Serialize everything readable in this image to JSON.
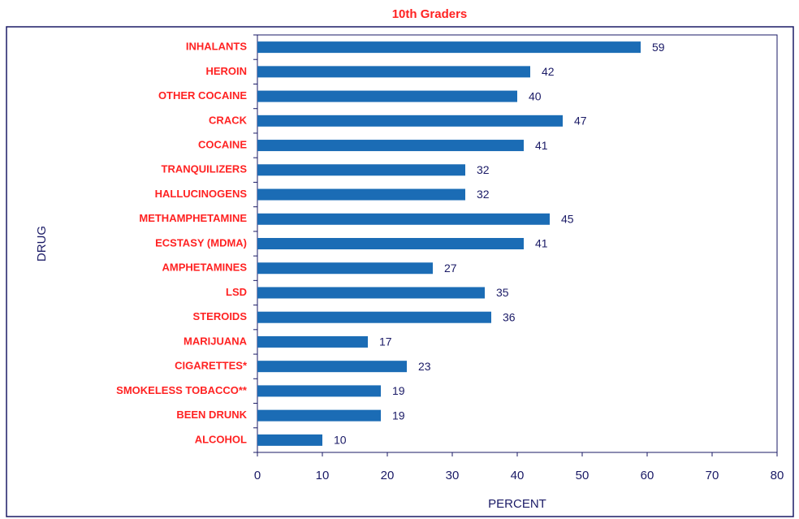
{
  "chart_data": {
    "type": "bar",
    "orientation": "horizontal",
    "title": "10th Graders",
    "xlabel": "PERCENT",
    "ylabel": "DRUG",
    "categories": [
      "INHALANTS",
      "HEROIN",
      "OTHER COCAINE",
      "CRACK",
      "COCAINE",
      "TRANQUILIZERS",
      "HALLUCINOGENS",
      "METHAMPHETAMINE",
      "ECSTASY (MDMA)",
      "AMPHETAMINES",
      "LSD",
      "STEROIDS",
      "MARIJUANA",
      "CIGARETTES*",
      "SMOKELESS TOBACCO**",
      "BEEN DRUNK",
      "ALCOHOL"
    ],
    "values": [
      59,
      42,
      40,
      47,
      41,
      32,
      32,
      45,
      41,
      27,
      35,
      36,
      17,
      23,
      19,
      19,
      10
    ],
    "color": "#1b6cb5",
    "xlim": [
      0,
      80
    ],
    "xticks": [
      0,
      10,
      20,
      30,
      40,
      50,
      60,
      70,
      80
    ],
    "grid": false
  }
}
